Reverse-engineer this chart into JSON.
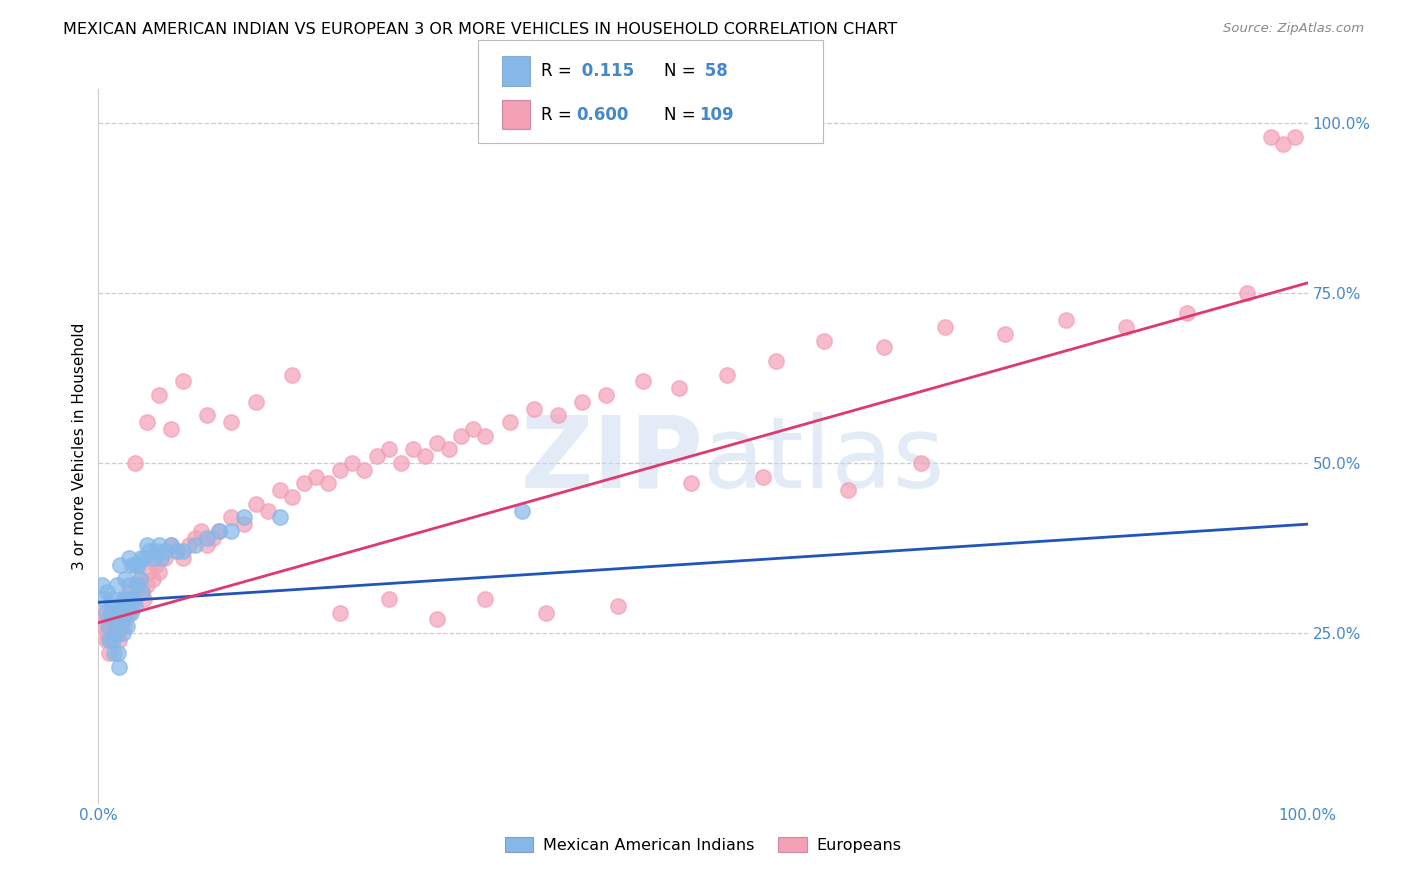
{
  "title": "MEXICAN AMERICAN INDIAN VS EUROPEAN 3 OR MORE VEHICLES IN HOUSEHOLD CORRELATION CHART",
  "source": "Source: ZipAtlas.com",
  "ylabel": "3 or more Vehicles in Household",
  "xlim": [
    0.0,
    1.0
  ],
  "ylim": [
    0.0,
    1.05
  ],
  "xticks": [
    0.0,
    0.2,
    0.4,
    0.6,
    0.8,
    1.0
  ],
  "xticklabels": [
    "0.0%",
    "",
    "",
    "",
    "",
    "100.0%"
  ],
  "ytick_right_labels": [
    "25.0%",
    "50.0%",
    "75.0%",
    "100.0%"
  ],
  "ytick_right_values": [
    0.25,
    0.5,
    0.75,
    1.0
  ],
  "legend_r_blue": "0.115",
  "legend_n_blue": "58",
  "legend_r_pink": "0.600",
  "legend_n_pink": "109",
  "blue_color": "#85b8e8",
  "pink_color": "#f4a0b5",
  "blue_line_color": "#2255bb",
  "pink_line_color": "#e03870",
  "blue_line_style": "-",
  "pink_line_style": "-",
  "blue_slope": 0.115,
  "blue_intercept": 0.295,
  "pink_slope": 0.5,
  "pink_intercept": 0.265,
  "blue_scatter_x": [
    0.003,
    0.005,
    0.006,
    0.007,
    0.008,
    0.009,
    0.01,
    0.01,
    0.011,
    0.012,
    0.012,
    0.013,
    0.014,
    0.015,
    0.015,
    0.016,
    0.017,
    0.018,
    0.018,
    0.019,
    0.02,
    0.02,
    0.021,
    0.022,
    0.022,
    0.023,
    0.024,
    0.025,
    0.025,
    0.026,
    0.027,
    0.028,
    0.028,
    0.03,
    0.03,
    0.032,
    0.033,
    0.034,
    0.035,
    0.036,
    0.038,
    0.04,
    0.042,
    0.045,
    0.048,
    0.05,
    0.052,
    0.055,
    0.06,
    0.065,
    0.07,
    0.08,
    0.09,
    0.1,
    0.11,
    0.12,
    0.15,
    0.35
  ],
  "blue_scatter_y": [
    0.32,
    0.3,
    0.28,
    0.31,
    0.26,
    0.24,
    0.3,
    0.28,
    0.29,
    0.27,
    0.24,
    0.22,
    0.25,
    0.32,
    0.28,
    0.22,
    0.2,
    0.28,
    0.35,
    0.29,
    0.3,
    0.25,
    0.27,
    0.3,
    0.33,
    0.28,
    0.26,
    0.32,
    0.36,
    0.3,
    0.28,
    0.35,
    0.3,
    0.35,
    0.29,
    0.32,
    0.35,
    0.33,
    0.36,
    0.31,
    0.36,
    0.38,
    0.37,
    0.36,
    0.37,
    0.38,
    0.36,
    0.37,
    0.38,
    0.37,
    0.37,
    0.38,
    0.39,
    0.4,
    0.4,
    0.42,
    0.42,
    0.43
  ],
  "pink_scatter_x": [
    0.003,
    0.005,
    0.006,
    0.007,
    0.008,
    0.009,
    0.01,
    0.01,
    0.011,
    0.012,
    0.013,
    0.014,
    0.015,
    0.016,
    0.017,
    0.018,
    0.019,
    0.02,
    0.021,
    0.022,
    0.023,
    0.024,
    0.025,
    0.026,
    0.027,
    0.028,
    0.03,
    0.032,
    0.034,
    0.036,
    0.038,
    0.04,
    0.042,
    0.045,
    0.048,
    0.05,
    0.055,
    0.06,
    0.065,
    0.07,
    0.075,
    0.08,
    0.085,
    0.09,
    0.095,
    0.1,
    0.11,
    0.12,
    0.13,
    0.14,
    0.15,
    0.16,
    0.17,
    0.18,
    0.19,
    0.2,
    0.21,
    0.22,
    0.23,
    0.24,
    0.25,
    0.26,
    0.27,
    0.28,
    0.29,
    0.3,
    0.31,
    0.32,
    0.34,
    0.36,
    0.38,
    0.4,
    0.42,
    0.45,
    0.48,
    0.52,
    0.56,
    0.6,
    0.65,
    0.7,
    0.75,
    0.8,
    0.85,
    0.9,
    0.95,
    0.97,
    0.98,
    0.99,
    0.03,
    0.04,
    0.05,
    0.06,
    0.07,
    0.09,
    0.11,
    0.13,
    0.16,
    0.2,
    0.24,
    0.28,
    0.32,
    0.37,
    0.43,
    0.49,
    0.55,
    0.62,
    0.68
  ],
  "pink_scatter_y": [
    0.28,
    0.26,
    0.24,
    0.25,
    0.27,
    0.22,
    0.26,
    0.24,
    0.25,
    0.27,
    0.28,
    0.26,
    0.27,
    0.25,
    0.24,
    0.26,
    0.28,
    0.27,
    0.26,
    0.28,
    0.3,
    0.29,
    0.28,
    0.3,
    0.31,
    0.29,
    0.3,
    0.32,
    0.33,
    0.31,
    0.3,
    0.32,
    0.34,
    0.33,
    0.35,
    0.34,
    0.36,
    0.38,
    0.37,
    0.36,
    0.38,
    0.39,
    0.4,
    0.38,
    0.39,
    0.4,
    0.42,
    0.41,
    0.44,
    0.43,
    0.46,
    0.45,
    0.47,
    0.48,
    0.47,
    0.49,
    0.5,
    0.49,
    0.51,
    0.52,
    0.5,
    0.52,
    0.51,
    0.53,
    0.52,
    0.54,
    0.55,
    0.54,
    0.56,
    0.58,
    0.57,
    0.59,
    0.6,
    0.62,
    0.61,
    0.63,
    0.65,
    0.68,
    0.67,
    0.7,
    0.69,
    0.71,
    0.7,
    0.72,
    0.75,
    0.98,
    0.97,
    0.98,
    0.5,
    0.56,
    0.6,
    0.55,
    0.62,
    0.57,
    0.56,
    0.59,
    0.63,
    0.28,
    0.3,
    0.27,
    0.3,
    0.28,
    0.29,
    0.47,
    0.48,
    0.46,
    0.5
  ]
}
